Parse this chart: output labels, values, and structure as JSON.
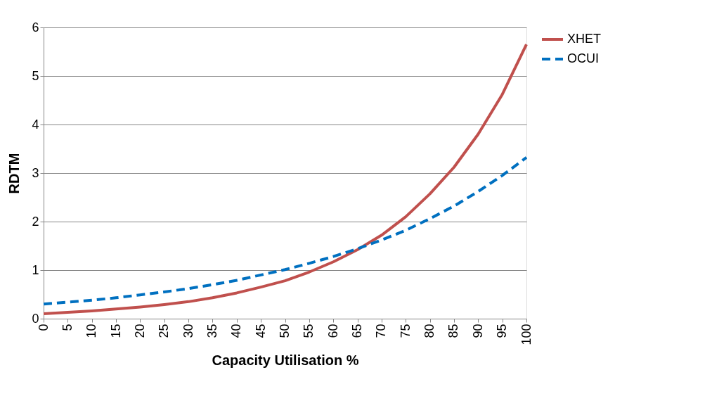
{
  "chart_data": {
    "type": "line",
    "xlabel": "Capacity Utilisation %",
    "ylabel": "RDTM",
    "x": [
      0,
      5,
      10,
      15,
      20,
      25,
      30,
      35,
      40,
      45,
      50,
      55,
      60,
      65,
      70,
      75,
      80,
      85,
      90,
      95,
      100
    ],
    "xlim": [
      0,
      100
    ],
    "xticks": [
      0,
      5,
      10,
      15,
      20,
      25,
      30,
      35,
      40,
      45,
      50,
      55,
      60,
      65,
      70,
      75,
      80,
      85,
      90,
      95,
      100
    ],
    "ylim": [
      0,
      6
    ],
    "yticks": [
      0,
      1,
      2,
      3,
      4,
      5,
      6
    ],
    "grid": "y",
    "legend": "right",
    "marker": "none",
    "series": [
      {
        "name": "XHET",
        "color": "#c0504d",
        "line_style": "solid",
        "values": [
          0.1,
          0.13,
          0.16,
          0.2,
          0.24,
          0.29,
          0.35,
          0.43,
          0.53,
          0.65,
          0.78,
          0.96,
          1.17,
          1.42,
          1.72,
          2.1,
          2.57,
          3.12,
          3.8,
          4.62,
          5.65
        ]
      },
      {
        "name": "OCUI",
        "color": "#0070c0",
        "line_style": "dashed",
        "values": [
          0.3,
          0.34,
          0.38,
          0.43,
          0.49,
          0.55,
          0.62,
          0.7,
          0.79,
          0.9,
          1.01,
          1.14,
          1.28,
          1.44,
          1.62,
          1.82,
          2.06,
          2.32,
          2.62,
          2.95,
          3.32
        ]
      }
    ]
  }
}
